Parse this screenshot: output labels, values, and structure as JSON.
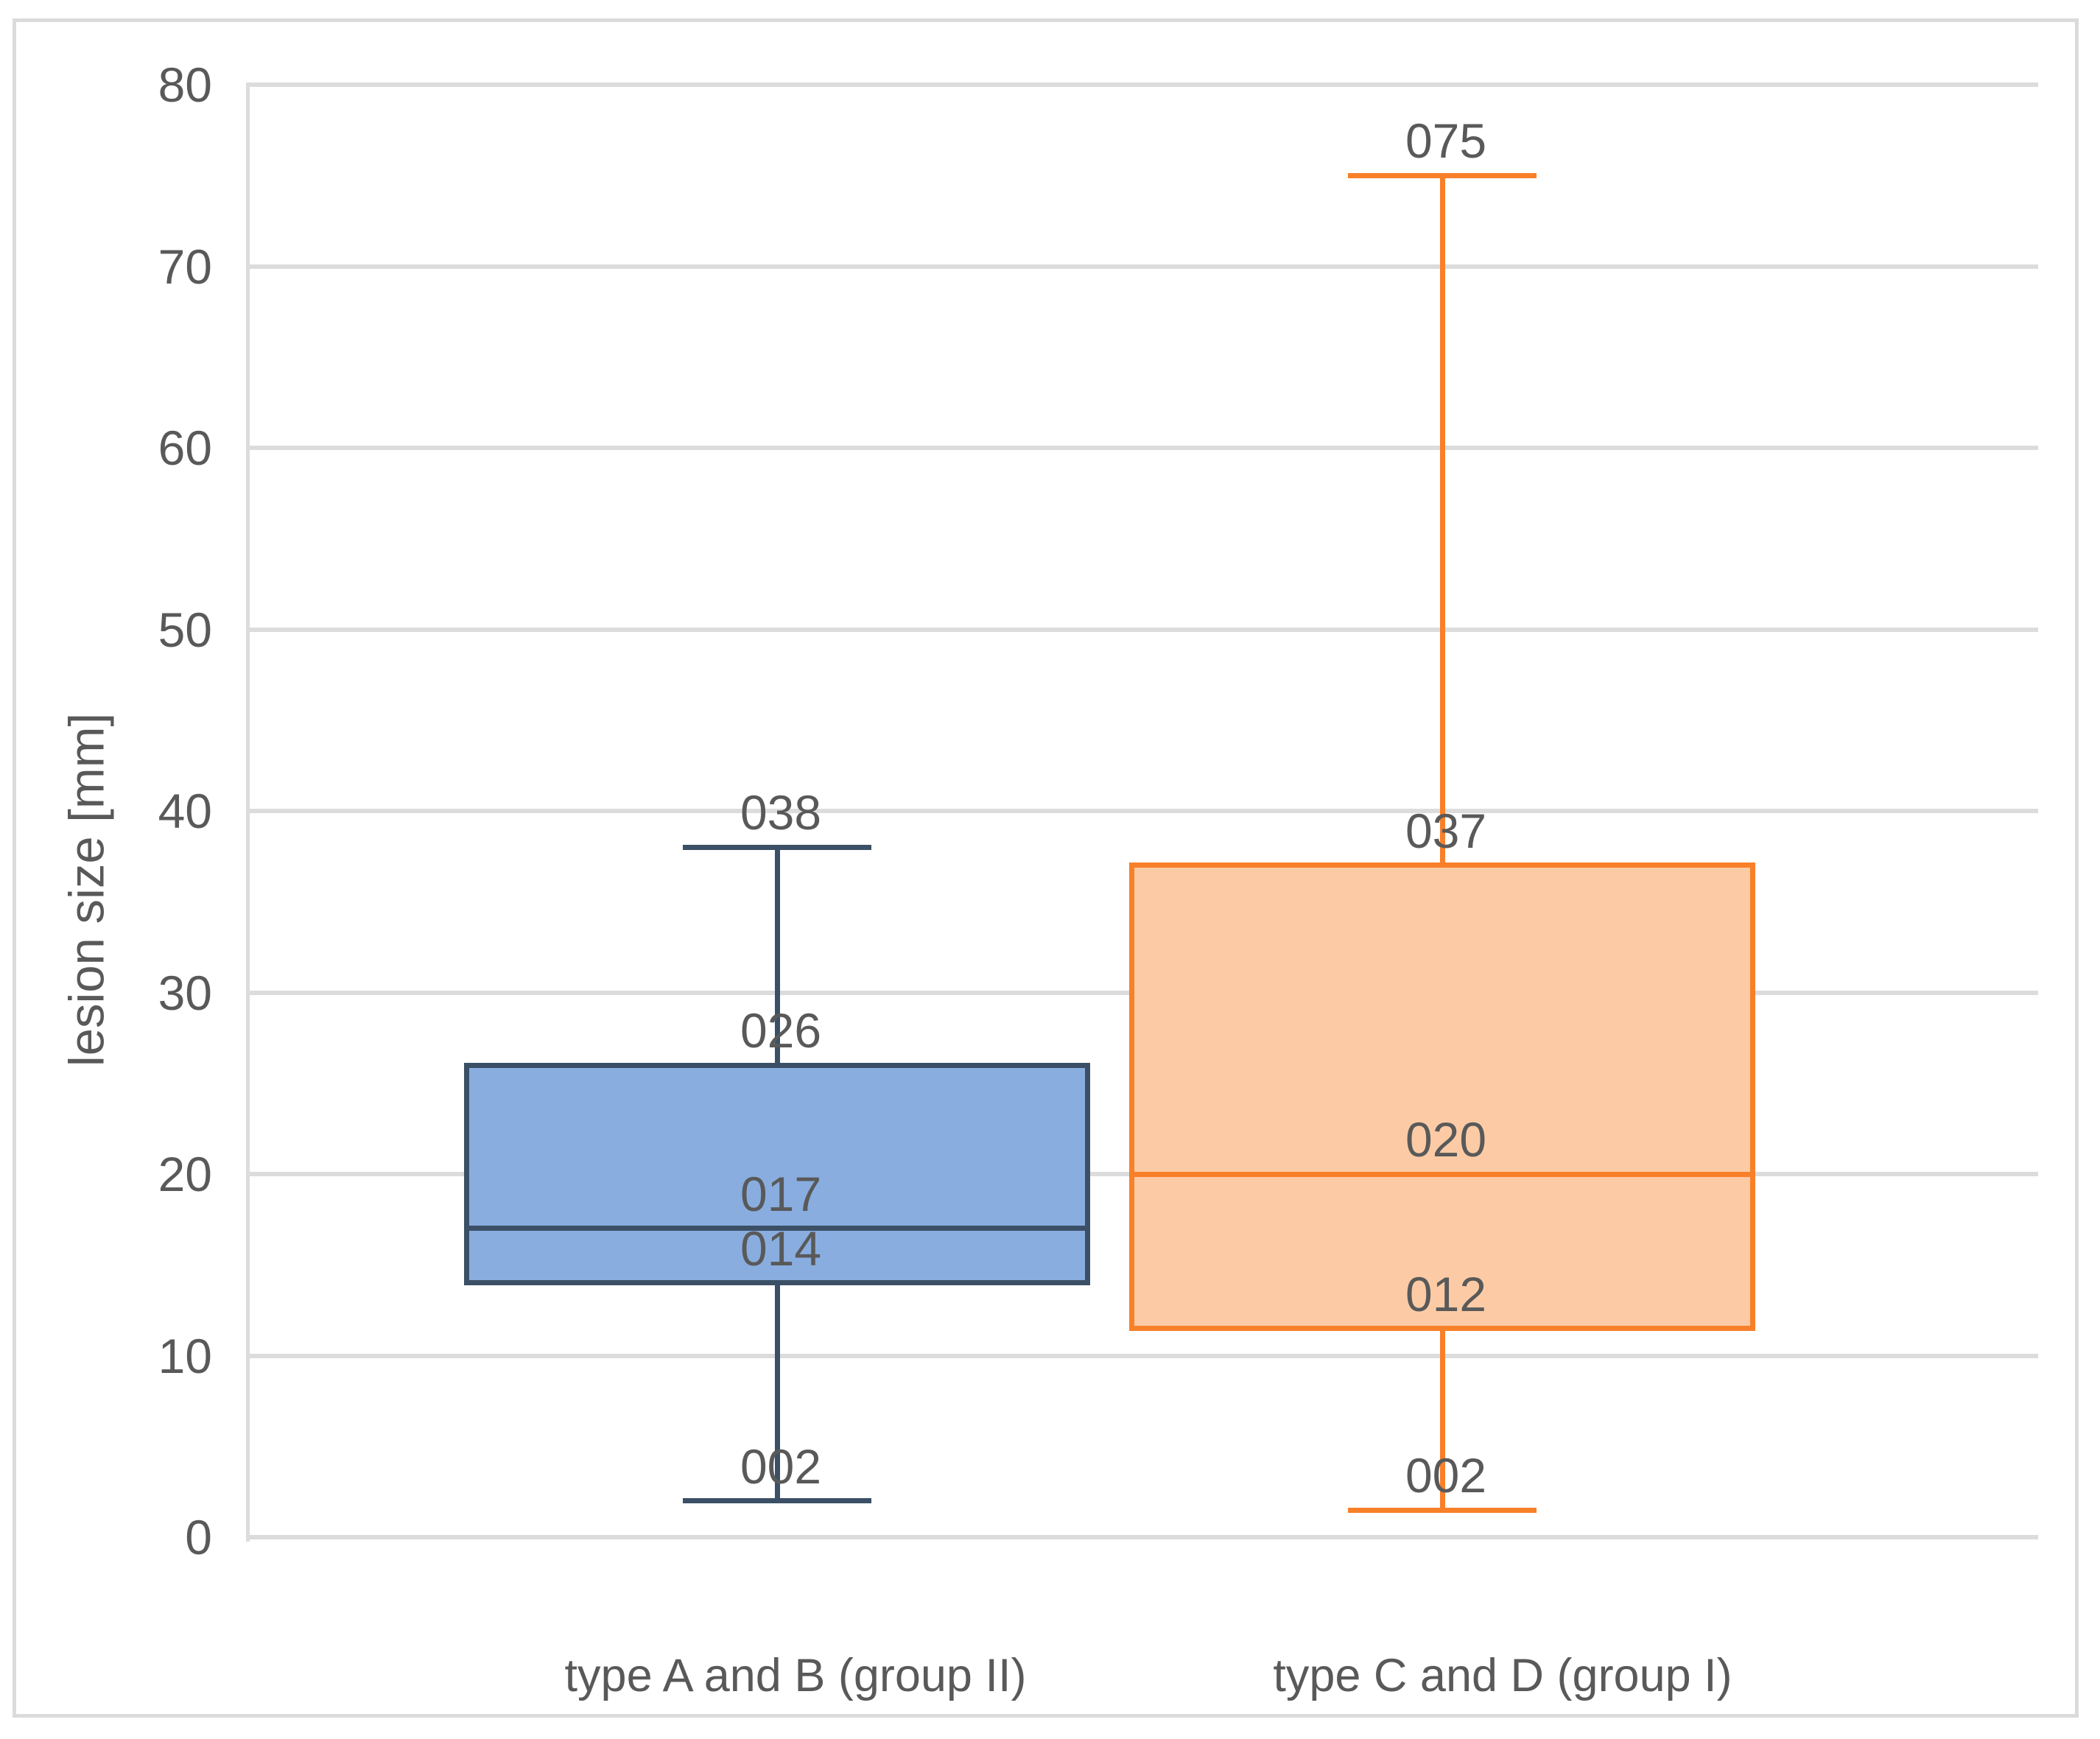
{
  "chart_data": {
    "type": "boxplot",
    "title": "",
    "xlabel": "",
    "ylabel": "lesion size [mm]",
    "ylim": [
      0,
      80
    ],
    "ytick_step": 10,
    "ytick_labels": [
      "0",
      "10",
      "20",
      "30",
      "40",
      "50",
      "60",
      "70",
      "80"
    ],
    "grid": true,
    "legend": "none",
    "categories": [
      "type A and B (group II)",
      "type C and D (group I)"
    ],
    "series": [
      {
        "name": "type A and B (group II)",
        "min": 2,
        "q1": 14,
        "median": 17,
        "q3": 26,
        "max": 38,
        "labels": {
          "max": "038",
          "q3": "026",
          "median": "017",
          "q1": "014",
          "min": "002"
        },
        "fill_color": "#89ADDF",
        "border_color": "#3B5066"
      },
      {
        "name": "type C and D (group I)",
        "min": 1.5,
        "q1": 11.5,
        "median": 20,
        "q3": 37,
        "max": 75,
        "labels": {
          "max": "075",
          "q3": "037",
          "median": "020",
          "q1": "012",
          "min": "002"
        },
        "fill_color": "#FCCBA5",
        "border_color": "#F88029"
      }
    ],
    "colors": {
      "gridline": "#DCDCDC",
      "axis_line": "#DCDCDC",
      "chart_border": "#DBDBDB",
      "text": "#595959"
    }
  }
}
